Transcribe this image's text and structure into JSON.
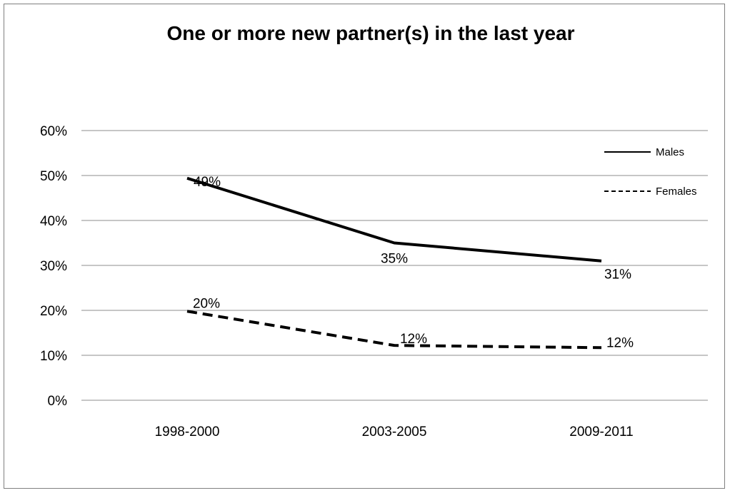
{
  "chart_data": {
    "type": "line",
    "title": "One or more new partner(s) in the last year",
    "xlabel": "",
    "ylabel": "",
    "categories": [
      "1998-2000",
      "2003-2005",
      "2009-2011"
    ],
    "ylim": [
      0,
      60
    ],
    "y_ticks": [
      "0%",
      "10%",
      "20%",
      "30%",
      "40%",
      "50%",
      "60%"
    ],
    "grid": true,
    "legend_position": "right",
    "series": [
      {
        "name": "Males",
        "values": [
          49.4,
          35,
          31
        ],
        "labels": [
          "49%",
          "35%",
          "31%"
        ],
        "line_style": "solid",
        "color": "#000000"
      },
      {
        "name": "Females",
        "values": [
          19.8,
          12.2,
          11.7
        ],
        "labels": [
          "20%",
          "12%",
          "12%"
        ],
        "line_style": "dashed",
        "color": "#000000"
      }
    ]
  }
}
